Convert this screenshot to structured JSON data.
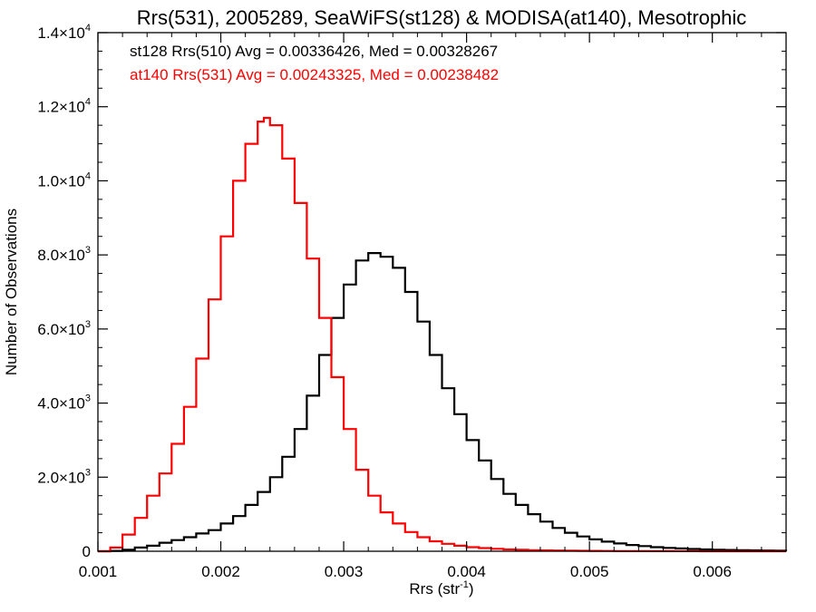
{
  "chart_data": {
    "type": "line",
    "title": "Rrs(531), 2005289, SeaWiFS(st128) & MODISA(at140), Mesotrophic",
    "xlabel": "Rrs (str",
    "xlabel_sup": "-1",
    "xlabel_end": ")",
    "ylabel": "Number of Observations",
    "xlim": [
      0.001,
      0.0066
    ],
    "ylim": [
      0,
      14000
    ],
    "grid": false,
    "x_ticks": [
      {
        "value": 0.001,
        "label": "0.001"
      },
      {
        "value": 0.002,
        "label": "0.002"
      },
      {
        "value": 0.003,
        "label": "0.003"
      },
      {
        "value": 0.004,
        "label": "0.004"
      },
      {
        "value": 0.005,
        "label": "0.005"
      },
      {
        "value": 0.006,
        "label": "0.006"
      }
    ],
    "y_ticks": [
      {
        "value": 0,
        "mant": "0",
        "exp": ""
      },
      {
        "value": 2000,
        "mant": "2.0×10",
        "exp": "3"
      },
      {
        "value": 4000,
        "mant": "4.0×10",
        "exp": "3"
      },
      {
        "value": 6000,
        "mant": "6.0×10",
        "exp": "3"
      },
      {
        "value": 8000,
        "mant": "8.0×10",
        "exp": "3"
      },
      {
        "value": 10000,
        "mant": "1.0×10",
        "exp": "4"
      },
      {
        "value": 12000,
        "mant": "1.2×10",
        "exp": "4"
      },
      {
        "value": 14000,
        "mant": "1.4×10",
        "exp": "4"
      }
    ],
    "annotations": [
      {
        "text": "st128 Rrs(510) Avg = 0.00336426, Med = 0.00328267",
        "color": "#000000"
      },
      {
        "text": "at140 Rrs(531) Avg = 0.00243325, Med = 0.00238482",
        "color": "#ff0000"
      }
    ],
    "series": [
      {
        "color": "#000000",
        "x": [
          0.001,
          0.0011,
          0.0012,
          0.0013,
          0.0014,
          0.0015,
          0.0016,
          0.0017,
          0.0018,
          0.0019,
          0.002,
          0.0021,
          0.0022,
          0.0023,
          0.0024,
          0.0025,
          0.0026,
          0.0027,
          0.0028,
          0.0029,
          0.003,
          0.0031,
          0.0032,
          0.0033,
          0.0034,
          0.0035,
          0.0036,
          0.0037,
          0.0038,
          0.0039,
          0.004,
          0.0041,
          0.0042,
          0.0043,
          0.0044,
          0.0045,
          0.0046,
          0.0047,
          0.0048,
          0.0049,
          0.005,
          0.0051,
          0.0052,
          0.0053,
          0.0054,
          0.0055,
          0.0056,
          0.0057,
          0.0058,
          0.0059,
          0.006,
          0.0061,
          0.0062,
          0.0063,
          0.0064,
          0.0065,
          0.0066
        ],
        "y": [
          0,
          10,
          40,
          100,
          150,
          230,
          300,
          380,
          480,
          570,
          750,
          950,
          1250,
          1600,
          2000,
          2550,
          3300,
          4200,
          5300,
          6300,
          7200,
          7850,
          8050,
          7950,
          7650,
          7000,
          6200,
          5300,
          4400,
          3700,
          3000,
          2450,
          1950,
          1550,
          1250,
          1000,
          800,
          630,
          500,
          400,
          320,
          260,
          210,
          170,
          140,
          110,
          90,
          75,
          60,
          50,
          40,
          35,
          30,
          25,
          20,
          15,
          10
        ]
      },
      {
        "color": "#ff0000",
        "x": [
          0.001,
          0.0011,
          0.0012,
          0.0013,
          0.0014,
          0.0015,
          0.0016,
          0.0017,
          0.0018,
          0.0019,
          0.002,
          0.0021,
          0.0022,
          0.0023,
          0.00235,
          0.0024,
          0.0025,
          0.0026,
          0.0027,
          0.0028,
          0.0029,
          0.003,
          0.0031,
          0.0032,
          0.0033,
          0.0034,
          0.0035,
          0.0036,
          0.0037,
          0.0038,
          0.0039,
          0.004,
          0.0041,
          0.0042,
          0.0043,
          0.0044,
          0.0045,
          0.0046,
          0.0047,
          0.0048,
          0.0049,
          0.005,
          0.0051,
          0.0052,
          0.0053,
          0.0054,
          0.0055,
          0.0056,
          0.0057,
          0.0058,
          0.0059,
          0.006,
          0.0061,
          0.0062,
          0.0063,
          0.0064,
          0.0065,
          0.0066
        ],
        "y": [
          0,
          100,
          450,
          900,
          1500,
          2100,
          2900,
          3900,
          5200,
          6800,
          8500,
          10000,
          11000,
          11600,
          11700,
          11500,
          10600,
          9400,
          7900,
          6300,
          4700,
          3300,
          2200,
          1500,
          1050,
          750,
          520,
          380,
          270,
          200,
          150,
          110,
          85,
          65,
          50,
          40,
          30,
          25,
          20,
          15,
          12,
          10,
          8,
          6,
          5,
          4,
          3,
          3,
          2,
          2,
          1,
          1,
          1,
          0,
          0,
          0,
          0,
          0
        ]
      }
    ]
  }
}
